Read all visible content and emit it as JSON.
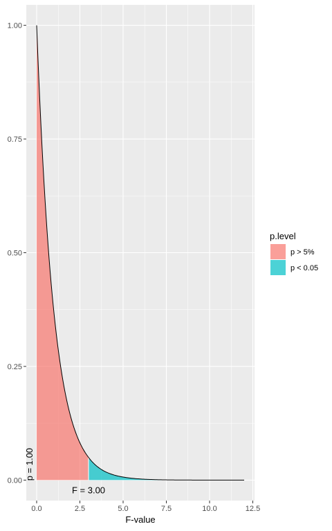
{
  "chart_data": {
    "type": "area",
    "title": "",
    "xlabel": "F-value",
    "ylabel": "",
    "xlim": [
      -0.6,
      12.6
    ],
    "ylim": [
      -0.045,
      1.045
    ],
    "x_ticks": [
      0.0,
      2.5,
      5.0,
      7.5,
      10.0,
      12.5
    ],
    "x_tick_labels": [
      "0.0",
      "2.5",
      "5.0",
      "7.5",
      "10.0",
      "12.5"
    ],
    "y_ticks": [
      0.0,
      0.25,
      0.5,
      0.75,
      1.0
    ],
    "y_tick_labels": [
      "0.00",
      "0.25",
      "0.50",
      "0.75",
      "1.00"
    ],
    "grid": true,
    "legend": {
      "title": "p.level",
      "placement": "right",
      "entries": [
        {
          "label": "p > 5%",
          "color": "#F8766D"
        },
        {
          "label": "p < 0.05",
          "color": "#00BFC4"
        }
      ]
    },
    "curve": {
      "x": [
        0,
        0.25,
        0.5,
        0.75,
        1.0,
        1.5,
        2.0,
        2.5,
        3.0,
        3.5,
        4.0,
        5.0,
        6.0,
        7.0,
        8.0,
        10.0,
        12.0
      ],
      "y": [
        1.0,
        0.779,
        0.607,
        0.472,
        0.368,
        0.223,
        0.135,
        0.082,
        0.05,
        0.03,
        0.018,
        0.0067,
        0.0025,
        0.0009,
        0.0003,
        5e-05,
        6e-06
      ]
    },
    "series": [
      {
        "name": "p > 5%",
        "x_range": [
          0,
          3.0
        ],
        "color": "#F8766D"
      },
      {
        "name": "p < 0.05",
        "x_range": [
          3.0,
          12.0
        ],
        "color": "#00BFC4"
      }
    ],
    "annotations": [
      {
        "text": "F = 3.00",
        "x": 3.0,
        "y": -0.02
      },
      {
        "text": "p = 1.00",
        "x": 0.0,
        "y": 0.05,
        "rotation": -90
      }
    ],
    "style": {
      "panel_bg": "#EBEBEB",
      "grid_color": "#FFFFFF",
      "fill_opacity": 0.7
    }
  }
}
